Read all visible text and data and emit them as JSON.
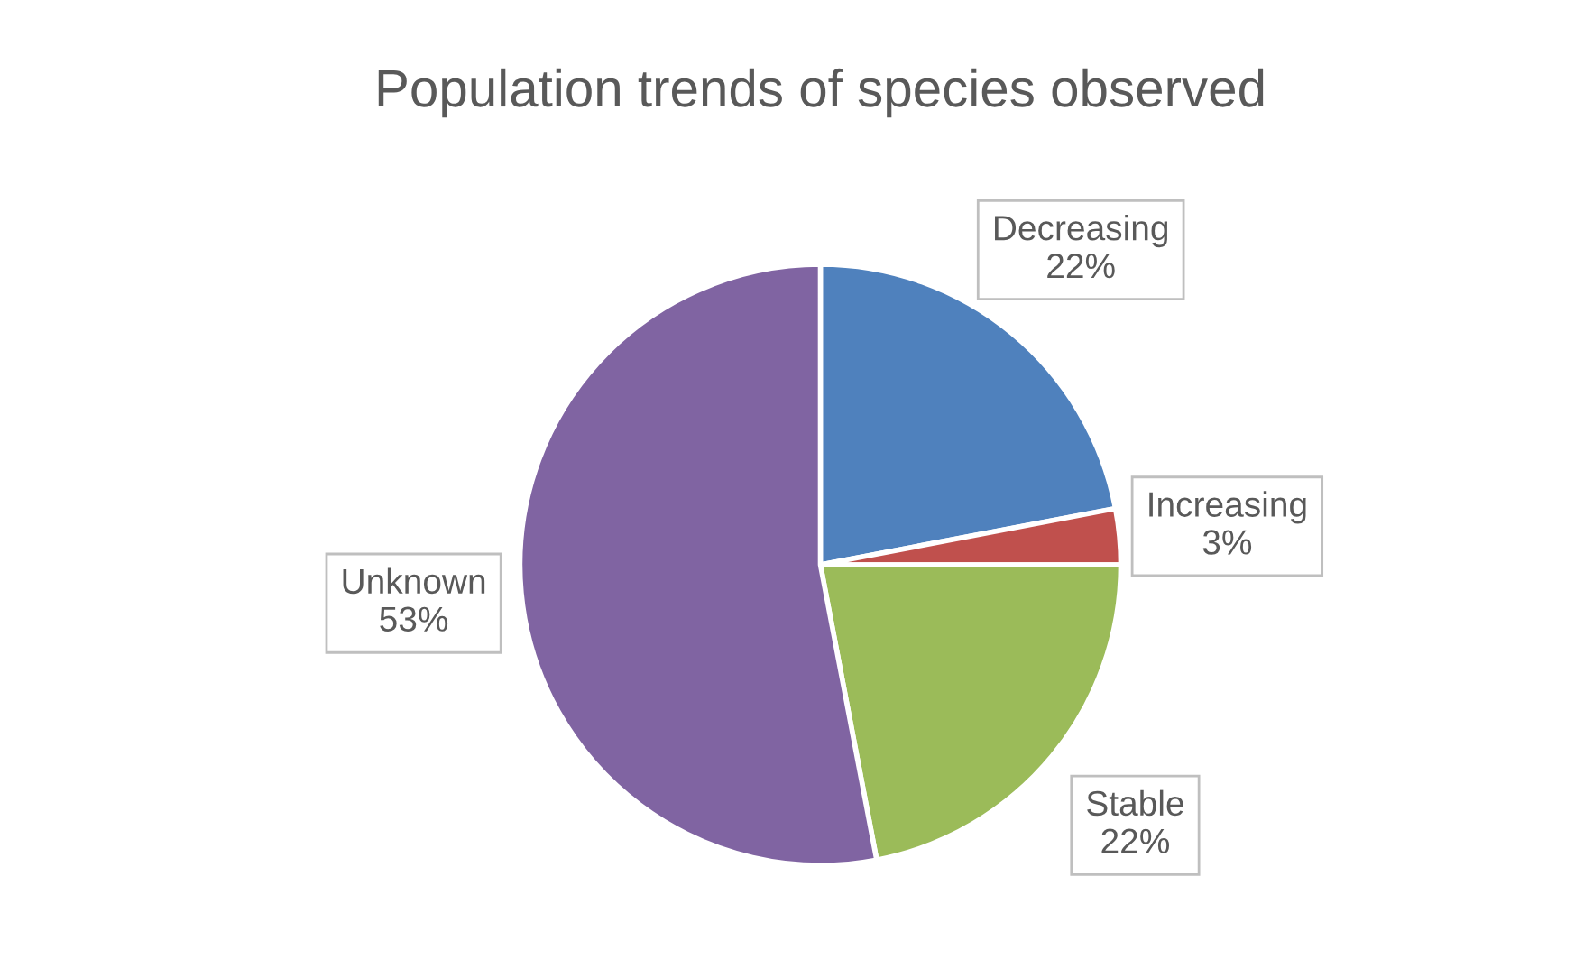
{
  "chart_data": {
    "type": "pie",
    "title": "Population trends of species observed",
    "categories": [
      "Decreasing",
      "Increasing",
      "Stable",
      "Unknown"
    ],
    "values": [
      22,
      3,
      22,
      53
    ],
    "colors": [
      "#4f81bd",
      "#c0504d",
      "#9bbb59",
      "#8064a2"
    ],
    "value_labels": [
      "22%",
      "3%",
      "22%",
      "53%"
    ],
    "legend": false
  }
}
